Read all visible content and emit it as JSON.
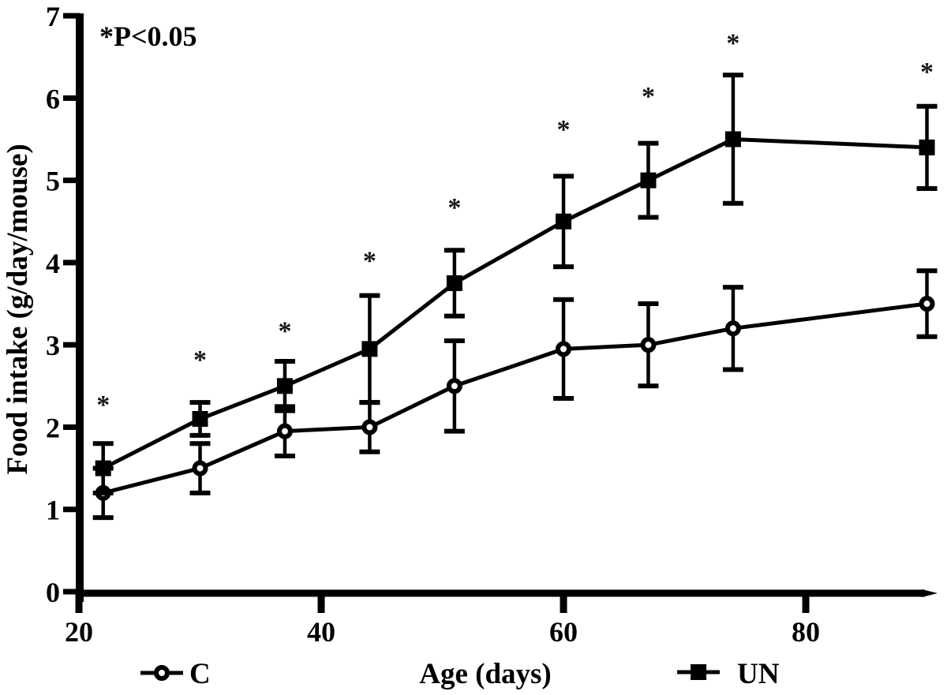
{
  "chart_data": {
    "type": "line",
    "title": "",
    "xlabel": "Age (days)",
    "ylabel": "Food intake (g/day/mouse)",
    "annotation": "*P<0.05",
    "xlim": [
      20,
      91
    ],
    "ylim": [
      0,
      7
    ],
    "x_ticks": [
      20,
      40,
      60,
      80
    ],
    "y_ticks": [
      0,
      1,
      2,
      3,
      4,
      5,
      6,
      7
    ],
    "grid": false,
    "legend_position": "bottom",
    "x": [
      22,
      30,
      37,
      44,
      51,
      60,
      67,
      74,
      90
    ],
    "series": [
      {
        "name": "C",
        "marker": "open-circle",
        "values": [
          1.2,
          1.5,
          1.95,
          2.0,
          2.5,
          2.95,
          3.0,
          3.2,
          3.5
        ],
        "errors": [
          0.3,
          0.3,
          0.3,
          0.3,
          0.55,
          0.6,
          0.5,
          0.5,
          0.4
        ]
      },
      {
        "name": "UN",
        "marker": "filled-square",
        "values": [
          1.5,
          2.1,
          2.5,
          2.95,
          3.75,
          4.5,
          5.0,
          5.5,
          5.4
        ],
        "errors": [
          0.3,
          0.2,
          0.3,
          0.65,
          0.4,
          0.55,
          0.45,
          0.78,
          0.5
        ]
      }
    ],
    "significance_marker": "*",
    "significance_y": [
      2.3,
      2.85,
      3.2,
      4.05,
      4.7,
      5.65,
      6.05,
      6.7,
      6.35
    ],
    "ink_color": "#000000",
    "background": "#ffffff"
  }
}
